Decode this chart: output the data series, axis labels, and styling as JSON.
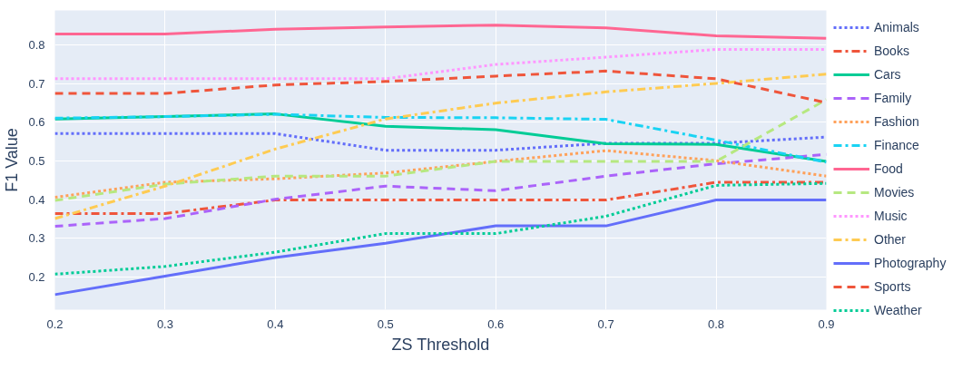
{
  "chart_data": {
    "type": "line",
    "xlabel": "ZS Threshold",
    "ylabel": "F1 Value",
    "x": [
      0.2,
      0.3,
      0.4,
      0.5,
      0.6,
      0.7,
      0.8,
      0.9
    ],
    "xlim": [
      0.2,
      0.9
    ],
    "xticks": [
      0.2,
      0.3,
      0.4,
      0.5,
      0.6,
      0.7,
      0.8,
      0.9
    ],
    "ylim": [
      0.115,
      0.89
    ],
    "yticks": [
      0.2,
      0.3,
      0.4,
      0.5,
      0.6,
      0.7,
      0.8
    ],
    "grid": true,
    "legend": "right",
    "marker": "none",
    "series": [
      {
        "name": "Animals",
        "color": "#636efa",
        "line_style": "dotted",
        "values": [
          0.571,
          0.571,
          0.571,
          0.528,
          0.528,
          0.546,
          0.546,
          0.562
        ]
      },
      {
        "name": "Books",
        "color": "#ef553b",
        "line_style": "dashdot",
        "values": [
          0.364,
          0.364,
          0.399,
          0.399,
          0.399,
          0.399,
          0.445,
          0.445
        ]
      },
      {
        "name": "Cars",
        "color": "#00cc96",
        "line_style": "solid",
        "values": [
          0.609,
          0.615,
          0.622,
          0.59,
          0.581,
          0.545,
          0.543,
          0.499
        ]
      },
      {
        "name": "Family",
        "color": "#ab63fa",
        "line_style": "dashed",
        "values": [
          0.331,
          0.351,
          0.401,
          0.435,
          0.423,
          0.461,
          0.493,
          0.517
        ]
      },
      {
        "name": "Fashion",
        "color": "#ffa15a",
        "line_style": "dotted",
        "values": [
          0.406,
          0.445,
          0.454,
          0.469,
          0.499,
          0.527,
          0.501,
          0.461
        ]
      },
      {
        "name": "Finance",
        "color": "#19d3f3",
        "line_style": "dashdot",
        "values": [
          0.611,
          0.615,
          0.621,
          0.613,
          0.612,
          0.608,
          0.554,
          0.497
        ]
      },
      {
        "name": "Food",
        "color": "#ff6692",
        "line_style": "solid",
        "values": [
          0.829,
          0.829,
          0.841,
          0.847,
          0.852,
          0.845,
          0.824,
          0.818
        ]
      },
      {
        "name": "Movies",
        "color": "#b6e880",
        "line_style": "dashed",
        "values": [
          0.398,
          0.44,
          0.461,
          0.461,
          0.499,
          0.499,
          0.499,
          0.659
        ]
      },
      {
        "name": "Music",
        "color": "#ff97ff",
        "line_style": "dotted",
        "values": [
          0.713,
          0.713,
          0.713,
          0.713,
          0.75,
          0.769,
          0.789,
          0.789
        ]
      },
      {
        "name": "Other",
        "color": "#fecb52",
        "line_style": "dashdot",
        "values": [
          0.351,
          0.435,
          0.531,
          0.609,
          0.65,
          0.679,
          0.701,
          0.725
        ]
      },
      {
        "name": "Photography",
        "color": "#636efa",
        "line_style": "solid",
        "values": [
          0.154,
          0.202,
          0.25,
          0.287,
          0.332,
          0.332,
          0.399,
          0.399
        ]
      },
      {
        "name": "Sports",
        "color": "#ef553b",
        "line_style": "dashed",
        "values": [
          0.675,
          0.675,
          0.697,
          0.706,
          0.72,
          0.733,
          0.713,
          0.651
        ]
      },
      {
        "name": "Weather",
        "color": "#00cc96",
        "line_style": "dotted",
        "values": [
          0.207,
          0.227,
          0.264,
          0.312,
          0.312,
          0.357,
          0.437,
          0.442
        ]
      }
    ]
  }
}
